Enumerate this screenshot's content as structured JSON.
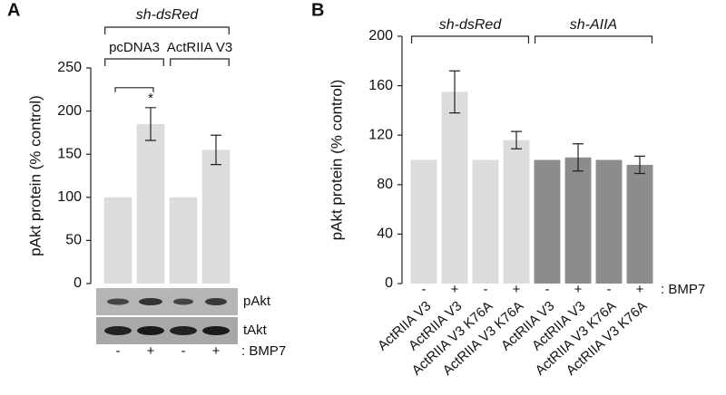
{
  "chart_data": [
    {
      "type": "bar",
      "panel": "A",
      "ylabel": "pAkt protein (% control)",
      "top_label": "sh-dsRed",
      "group_labels": [
        "pcDNA3",
        "ActRIIA V3"
      ],
      "categories": [
        "-",
        "+",
        "-",
        "+"
      ],
      "treatment_label": ": BMP7",
      "values": [
        100,
        185,
        100,
        155
      ],
      "errors": [
        0,
        19,
        0,
        17
      ],
      "colors": [
        "#dcdcdc",
        "#dcdcdc",
        "#dcdcdc",
        "#dcdcdc"
      ],
      "annotation": "*",
      "blot_labels": [
        "pAkt",
        "tAkt"
      ],
      "ylim": [
        0,
        250
      ],
      "yticks": [
        0,
        50,
        100,
        150,
        200,
        250
      ]
    },
    {
      "type": "bar",
      "panel": "B",
      "ylabel": "pAkt protein (% control)",
      "group_labels": [
        "sh-dsRed",
        "sh-AIIA"
      ],
      "categories": [
        "-",
        "+",
        "-",
        "+",
        "-",
        "+",
        "-",
        "+"
      ],
      "treatment_label": ": BMP7",
      "construct_labels": [
        "ActRIIA V3",
        "ActRIIA V3",
        "ActRIIA V3 K76A",
        "ActRIIA V3 K76A",
        "ActRIIA V3",
        "ActRIIA V3",
        "ActRIIA V3 K76A",
        "ActRIIA V3 K76A"
      ],
      "values": [
        100,
        155,
        100,
        116,
        100,
        102,
        100,
        96
      ],
      "errors": [
        0,
        17,
        0,
        7,
        0,
        11,
        0,
        7
      ],
      "colors": [
        "#dcdcdc",
        "#dcdcdc",
        "#dcdcdc",
        "#dcdcdc",
        "#8c8c8c",
        "#8c8c8c",
        "#8c8c8c",
        "#8c8c8c"
      ],
      "ylim": [
        0,
        200
      ],
      "yticks": [
        0,
        40,
        80,
        120,
        160,
        200
      ]
    }
  ]
}
